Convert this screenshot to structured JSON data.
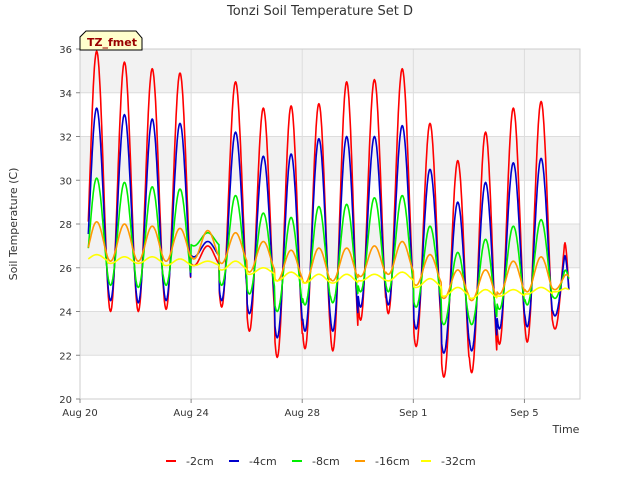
{
  "chart_data": {
    "type": "line",
    "title": "Tonzi Soil Temperature Set D",
    "xlabel": "Time",
    "ylabel": "Soil Temperature (C)",
    "badge": "TZ_fmet",
    "ylim": [
      20,
      36
    ],
    "xlim": [
      0,
      18
    ],
    "yticks": [
      "20",
      "22",
      "24",
      "26",
      "28",
      "30",
      "32",
      "34",
      "36"
    ],
    "xticks": [
      {
        "label": "Aug 20",
        "day": 0
      },
      {
        "label": "Aug 24",
        "day": 4
      },
      {
        "label": "Aug 28",
        "day": 8
      },
      {
        "label": "Sep 1",
        "day": 12
      },
      {
        "label": "Sep 5",
        "day": 16
      }
    ],
    "grid": true,
    "legend_position": "bottom",
    "x_units": "days since Aug 20",
    "series": [
      {
        "name": "-2cm",
        "color": "#ff0000",
        "max": [
          35.9,
          35.4,
          35.1,
          34.9,
          27.0,
          34.5,
          33.3,
          33.4,
          33.5,
          34.5,
          34.6,
          35.1,
          32.6,
          30.9,
          32.2,
          33.3,
          33.6,
          28.2
        ],
        "min": [
          24.0,
          24.0,
          24.0,
          24.1,
          26.1,
          24.2,
          23.1,
          21.9,
          22.3,
          22.2,
          23.6,
          23.9,
          22.4,
          21.0,
          21.2,
          22.5,
          22.6,
          23.2
        ],
        "last": 25.0
      },
      {
        "name": "-4cm",
        "color": "#0000cc",
        "max": [
          33.3,
          33.0,
          32.8,
          32.6,
          27.2,
          32.2,
          31.1,
          31.2,
          31.9,
          32.0,
          32.0,
          32.5,
          30.5,
          29.0,
          29.9,
          30.8,
          31.0,
          27.3
        ],
        "min": [
          24.5,
          24.5,
          24.4,
          24.5,
          26.5,
          24.5,
          23.9,
          22.8,
          23.1,
          23.1,
          24.2,
          24.3,
          23.2,
          22.1,
          22.2,
          23.2,
          23.3,
          23.8
        ],
        "last": 25.0
      },
      {
        "name": "-8cm",
        "color": "#00ee00",
        "max": [
          30.1,
          29.9,
          29.7,
          29.6,
          27.6,
          29.3,
          28.5,
          28.3,
          28.8,
          28.9,
          29.2,
          29.3,
          27.9,
          26.7,
          27.3,
          27.9,
          28.2,
          26.2
        ],
        "min": [
          25.2,
          25.2,
          25.1,
          25.2,
          27.0,
          25.2,
          24.8,
          24.0,
          24.3,
          24.4,
          24.9,
          24.9,
          24.2,
          23.4,
          23.4,
          24.1,
          24.3,
          24.6
        ],
        "last": 25.5
      },
      {
        "name": "-16cm",
        "color": "#ff9900",
        "max": [
          28.1,
          28.0,
          27.9,
          27.8,
          27.7,
          27.6,
          27.2,
          26.8,
          26.9,
          26.9,
          27.0,
          27.2,
          26.6,
          25.9,
          25.9,
          26.3,
          26.5,
          25.8
        ],
        "min": [
          26.3,
          26.3,
          26.3,
          26.3,
          26.4,
          26.2,
          25.8,
          25.4,
          25.3,
          25.4,
          25.6,
          25.7,
          25.2,
          24.6,
          24.5,
          24.8,
          24.9,
          25.0
        ],
        "last": 25.6
      },
      {
        "name": "-32cm",
        "color": "#ffff00",
        "max": [
          26.6,
          26.5,
          26.5,
          26.4,
          26.3,
          26.3,
          26.0,
          25.8,
          25.7,
          25.7,
          25.7,
          25.8,
          25.5,
          25.1,
          25.0,
          25.0,
          25.1,
          25.1
        ],
        "min": [
          26.3,
          26.2,
          26.2,
          26.1,
          26.1,
          25.9,
          25.7,
          25.4,
          25.3,
          25.3,
          25.4,
          25.4,
          25.1,
          24.7,
          24.6,
          24.7,
          24.8,
          24.9
        ],
        "last": 25.0
      }
    ]
  }
}
